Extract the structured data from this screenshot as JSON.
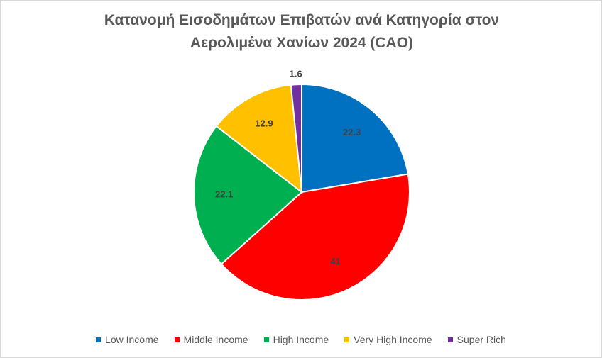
{
  "chart_data": {
    "type": "pie",
    "title": "Κατανομή Εισοδημάτων Επιβατών ανά Κατηγορία στον Αερολιμένα Χανίων 2024 (CAO)",
    "categories": [
      "Low Income",
      "Middle Income",
      "High Income",
      "Very High Income",
      "Super Rich"
    ],
    "values": [
      22.3,
      41,
      22.1,
      12.9,
      1.6
    ],
    "colors": [
      "#0070c0",
      "#ff0000",
      "#00b050",
      "#ffc000",
      "#7030a0"
    ],
    "legend": "bottom"
  }
}
